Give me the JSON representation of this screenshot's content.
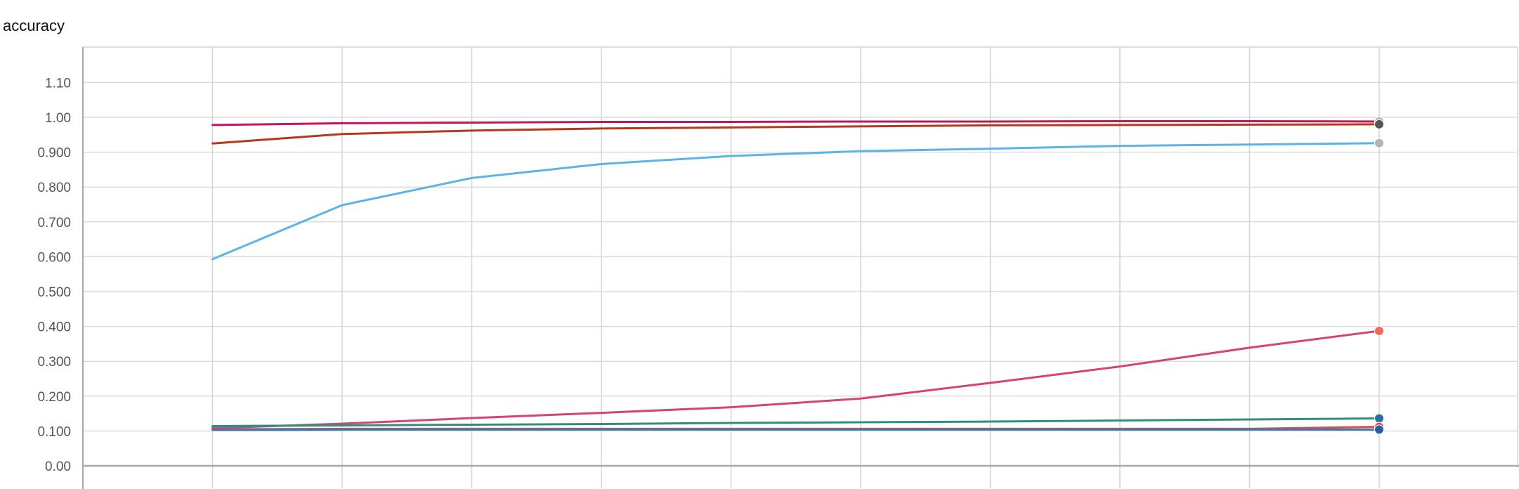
{
  "chart_data": {
    "type": "line",
    "title": "accuracy",
    "xlabel": "",
    "ylabel": "",
    "ylim": [
      0,
      1.2
    ],
    "xlim": [
      0,
      11
    ],
    "y_ticks": [
      {
        "value": 0,
        "label": "0.00"
      },
      {
        "value": 0.1,
        "label": "0.100"
      },
      {
        "value": 0.2,
        "label": "0.200"
      },
      {
        "value": 0.3,
        "label": "0.300"
      },
      {
        "value": 0.4,
        "label": "0.400"
      },
      {
        "value": 0.5,
        "label": "0.500"
      },
      {
        "value": 0.6,
        "label": "0.600"
      },
      {
        "value": 0.7,
        "label": "0.700"
      },
      {
        "value": 0.8,
        "label": "0.800"
      },
      {
        "value": 0.9,
        "label": "0.900"
      },
      {
        "value": 1.0,
        "label": "1.00"
      },
      {
        "value": 1.1,
        "label": "1.10"
      }
    ],
    "x_gridlines": [
      1,
      2,
      3,
      4,
      5,
      6,
      7,
      8,
      9,
      10
    ],
    "grid": true,
    "x": [
      1,
      2,
      3,
      4,
      5,
      6,
      7,
      8,
      9,
      10
    ],
    "series": [
      {
        "color": "#5ab4e5",
        "marker_color": "#aab8c2",
        "values": [
          0.593,
          0.748,
          0.826,
          0.866,
          0.889,
          0.903,
          0.91,
          0.918,
          0.922,
          0.926
        ]
      },
      {
        "color": "#c2185b",
        "marker_color": "#b0b0b0",
        "values": [
          0.978,
          0.983,
          0.985,
          0.987,
          0.987,
          0.988,
          0.988,
          0.989,
          0.989,
          0.988
        ]
      },
      {
        "color": "#b5381f",
        "marker_color": "#555555",
        "values": [
          0.925,
          0.952,
          0.962,
          0.968,
          0.971,
          0.974,
          0.977,
          0.978,
          0.979,
          0.98
        ]
      },
      {
        "color": "#d6437a",
        "marker_color": "#f06a5a",
        "values": [
          0.108,
          0.121,
          0.137,
          0.152,
          0.168,
          0.193,
          0.238,
          0.285,
          0.339,
          0.387
        ]
      },
      {
        "color": "#2e9077",
        "marker_color": "#2a6fa8",
        "values": [
          0.114,
          0.116,
          0.118,
          0.12,
          0.123,
          0.125,
          0.127,
          0.13,
          0.133,
          0.136
        ]
      },
      {
        "color": "#e05040",
        "marker_color": "#e05040",
        "values": [
          0.105,
          0.106,
          0.106,
          0.106,
          0.106,
          0.106,
          0.106,
          0.106,
          0.106,
          0.112
        ]
      },
      {
        "color": "#3a78b8",
        "marker_color": "#2a5fa0",
        "values": [
          0.103,
          0.104,
          0.104,
          0.104,
          0.104,
          0.104,
          0.104,
          0.104,
          0.104,
          0.104
        ]
      }
    ]
  }
}
